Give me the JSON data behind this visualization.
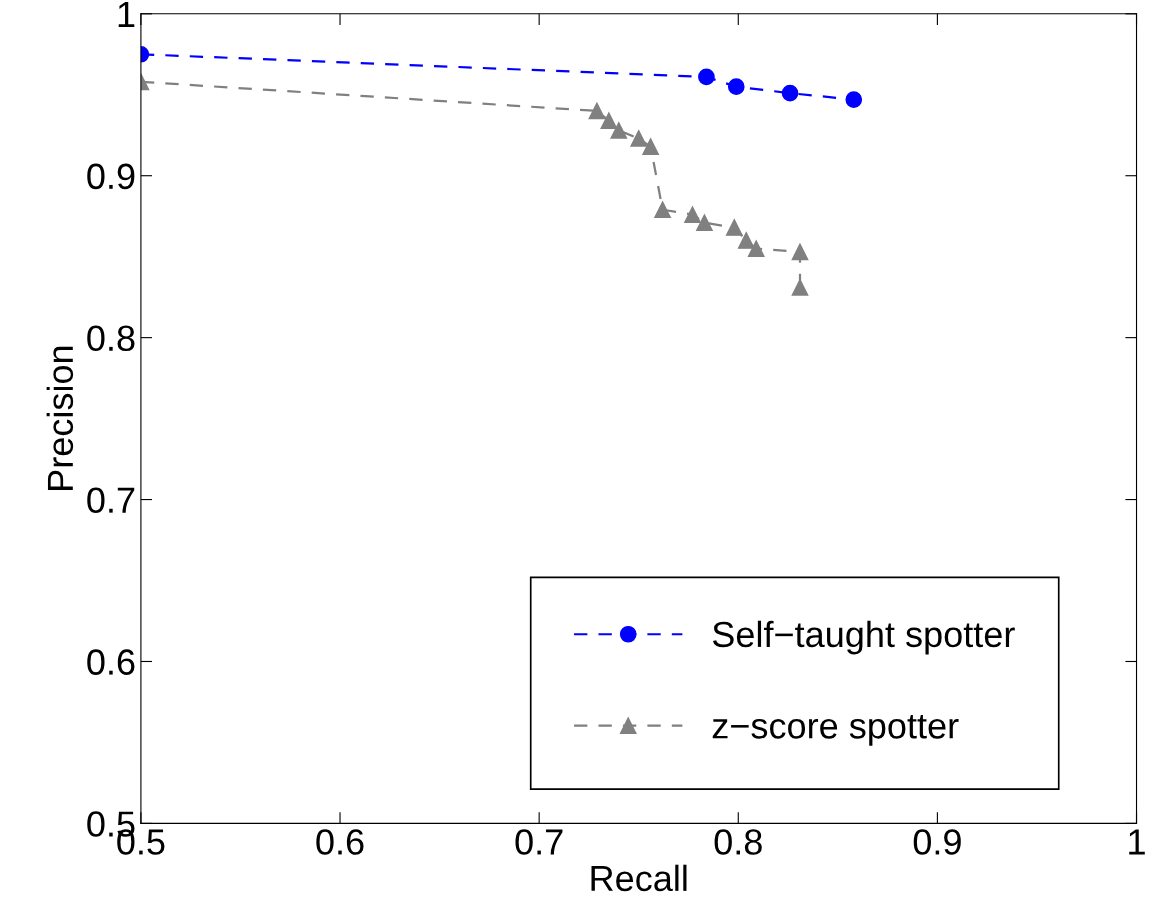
{
  "chart_data": {
    "type": "line",
    "xlabel": "Recall",
    "ylabel": "Precision",
    "xlim": [
      0.5,
      1
    ],
    "ylim": [
      0.5,
      1
    ],
    "xticks": [
      0.5,
      0.6,
      0.7,
      0.8,
      0.9,
      1
    ],
    "yticks": [
      0.5,
      0.6,
      0.7,
      0.8,
      0.9,
      1
    ],
    "grid": false,
    "legend": "bottom right",
    "line_style": "dashed",
    "series": [
      {
        "name": "Self−taught spotter",
        "color": "#0000ff",
        "marker": "circle",
        "x": [
          0.5,
          0.784,
          0.799,
          0.826,
          0.858
        ],
        "values": [
          0.975,
          0.961,
          0.955,
          0.951,
          0.947
        ]
      },
      {
        "name": "z−score spotter",
        "color": "#808080",
        "marker": "triangle",
        "x": [
          0.5,
          0.729,
          0.735,
          0.74,
          0.75,
          0.756,
          0.762,
          0.777,
          0.783,
          0.798,
          0.804,
          0.809,
          0.831,
          0.831
        ],
        "values": [
          0.958,
          0.94,
          0.934,
          0.928,
          0.923,
          0.918,
          0.879,
          0.876,
          0.871,
          0.868,
          0.86,
          0.855,
          0.853,
          0.831
        ]
      }
    ]
  }
}
